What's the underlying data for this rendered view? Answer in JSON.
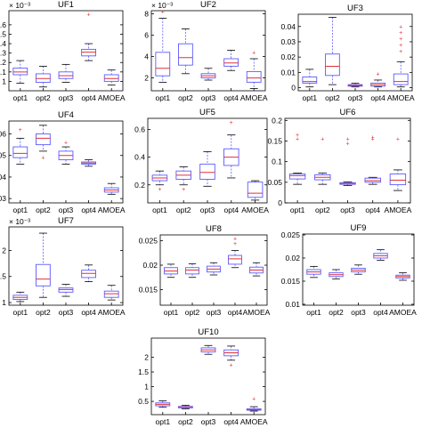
{
  "figure": {
    "colors": {
      "box": "#5b5bff",
      "median": "#e0303a",
      "whisker": "#5b5bff",
      "outlier": "#e0303a"
    }
  },
  "chart_data": [
    {
      "type": "boxplot",
      "title": "UF1",
      "exponent": "× 10⁻³",
      "categories": [
        "opt1",
        "opt2",
        "opt3",
        "opt4",
        "AMOEA"
      ],
      "ylim": [
        0.9,
        1.75
      ],
      "yticks": [
        "1",
        "1.1",
        "1.2",
        "1.3",
        "1.4",
        "1.5",
        "1.6"
      ],
      "ytick_values": [
        1.0,
        1.1,
        1.2,
        1.3,
        1.4,
        1.5,
        1.6
      ],
      "boxes": [
        {
          "min": 0.98,
          "q1": 1.07,
          "median": 1.1,
          "q3": 1.14,
          "max": 1.22,
          "outliers": []
        },
        {
          "min": 0.94,
          "q1": 0.99,
          "median": 1.03,
          "q3": 1.08,
          "max": 1.16,
          "outliers": []
        },
        {
          "min": 0.99,
          "q1": 1.03,
          "median": 1.06,
          "q3": 1.1,
          "max": 1.18,
          "outliers": []
        },
        {
          "min": 1.22,
          "q1": 1.27,
          "median": 1.31,
          "q3": 1.34,
          "max": 1.4,
          "outliers": [
            1.71
          ]
        },
        {
          "min": 0.96,
          "q1": 1.0,
          "median": 1.03,
          "q3": 1.07,
          "max": 1.12,
          "outliers": []
        }
      ]
    },
    {
      "type": "boxplot",
      "title": "UF2",
      "exponent": "× 10⁻³",
      "categories": [
        "opt1",
        "opt2",
        "opt3",
        "opt4",
        "AMOEA"
      ],
      "ylim": [
        0.8,
        8.3
      ],
      "yticks": [
        "2",
        "4",
        "6",
        "8"
      ],
      "ytick_values": [
        2,
        4,
        6,
        8
      ],
      "boxes": [
        {
          "min": 1.6,
          "q1": 2.2,
          "median": 2.9,
          "q3": 4.4,
          "max": 7.6,
          "outliers": [
            8.2
          ]
        },
        {
          "min": 2.4,
          "q1": 3.2,
          "median": 3.9,
          "q3": 5.2,
          "max": 6.6,
          "outliers": []
        },
        {
          "min": 1.8,
          "q1": 2.0,
          "median": 2.2,
          "q3": 2.4,
          "max": 2.9,
          "outliers": []
        },
        {
          "min": 2.7,
          "q1": 3.1,
          "median": 3.4,
          "q3": 3.8,
          "max": 4.6,
          "outliers": []
        },
        {
          "min": 1.0,
          "q1": 1.6,
          "median": 2.0,
          "q3": 2.6,
          "max": 3.8,
          "outliers": [
            4.4
          ]
        }
      ]
    },
    {
      "type": "boxplot",
      "title": "UF3",
      "exponent": "",
      "categories": [
        "opt1",
        "opt2",
        "opt3",
        "opt4",
        "AMOEA"
      ],
      "ylim": [
        -0.002,
        0.048
      ],
      "yticks": [
        "0",
        "0.01",
        "0.02",
        "0.03",
        "0.04"
      ],
      "ytick_values": [
        0,
        0.01,
        0.02,
        0.03,
        0.04
      ],
      "boxes": [
        {
          "min": 0.0005,
          "q1": 0.003,
          "median": 0.004,
          "q3": 0.007,
          "max": 0.012,
          "outliers": []
        },
        {
          "min": 0.002,
          "q1": 0.008,
          "median": 0.014,
          "q3": 0.022,
          "max": 0.046,
          "outliers": []
        },
        {
          "min": 0.0005,
          "q1": 0.001,
          "median": 0.0015,
          "q3": 0.002,
          "max": 0.003,
          "outliers": []
        },
        {
          "min": 0.0005,
          "q1": 0.001,
          "median": 0.002,
          "q3": 0.003,
          "max": 0.005,
          "outliers": [
            0.009
          ]
        },
        {
          "min": 0.0005,
          "q1": 0.002,
          "median": 0.004,
          "q3": 0.009,
          "max": 0.017,
          "outliers": [
            0.024,
            0.028,
            0.032,
            0.036,
            0.04
          ]
        }
      ]
    },
    {
      "type": "boxplot",
      "title": "UF4",
      "exponent": "",
      "categories": [
        "opt1",
        "opt2",
        "opt3",
        "opt4",
        "AMOEA"
      ],
      "ylim": [
        0.028,
        0.066
      ],
      "yticks": [
        "0.03",
        "0.04",
        "0.05",
        "0.06"
      ],
      "ytick_values": [
        0.03,
        0.04,
        0.05,
        0.06
      ],
      "boxes": [
        {
          "min": 0.046,
          "q1": 0.049,
          "median": 0.051,
          "q3": 0.054,
          "max": 0.058,
          "outliers": [
            0.062
          ]
        },
        {
          "min": 0.052,
          "q1": 0.055,
          "median": 0.058,
          "q3": 0.06,
          "max": 0.064,
          "outliers": [
            0.049
          ]
        },
        {
          "min": 0.046,
          "q1": 0.048,
          "median": 0.05,
          "q3": 0.052,
          "max": 0.054,
          "outliers": [
            0.056
          ]
        },
        {
          "min": 0.045,
          "q1": 0.046,
          "median": 0.0465,
          "q3": 0.047,
          "max": 0.048,
          "outliers": []
        },
        {
          "min": 0.032,
          "q1": 0.033,
          "median": 0.034,
          "q3": 0.035,
          "max": 0.037,
          "outliers": []
        }
      ]
    },
    {
      "type": "boxplot",
      "title": "UF5",
      "exponent": "",
      "categories": [
        "opt1",
        "opt2",
        "opt3",
        "opt4",
        "AMOEA"
      ],
      "ylim": [
        0.07,
        0.68
      ],
      "yticks": [
        "0.2",
        "0.4",
        "0.6"
      ],
      "ytick_values": [
        0.2,
        0.4,
        0.6
      ],
      "boxes": [
        {
          "min": 0.2,
          "q1": 0.23,
          "median": 0.25,
          "q3": 0.27,
          "max": 0.3,
          "outliers": [
            0.17
          ]
        },
        {
          "min": 0.2,
          "q1": 0.24,
          "median": 0.27,
          "q3": 0.3,
          "max": 0.33,
          "outliers": [
            0.17
          ]
        },
        {
          "min": 0.19,
          "q1": 0.24,
          "median": 0.29,
          "q3": 0.35,
          "max": 0.44,
          "outliers": []
        },
        {
          "min": 0.25,
          "q1": 0.34,
          "median": 0.4,
          "q3": 0.46,
          "max": 0.56,
          "outliers": [
            0.65
          ]
        },
        {
          "min": 0.09,
          "q1": 0.11,
          "median": 0.14,
          "q3": 0.22,
          "max": 0.23,
          "outliers": []
        }
      ]
    },
    {
      "type": "boxplot",
      "title": "UF6",
      "exponent": "",
      "categories": [
        "opt1",
        "opt2",
        "opt3",
        "opt4",
        "AMOEA"
      ],
      "ylim": [
        0.0,
        0.205
      ],
      "yticks": [
        "0",
        "0.05",
        "0.1",
        "0.15",
        "0.2"
      ],
      "ytick_values": [
        0,
        0.05,
        0.1,
        0.15,
        0.2
      ],
      "boxes": [
        {
          "min": 0.045,
          "q1": 0.058,
          "median": 0.066,
          "q3": 0.07,
          "max": 0.072,
          "outliers": [
            0.155,
            0.165
          ]
        },
        {
          "min": 0.045,
          "q1": 0.056,
          "median": 0.062,
          "q3": 0.068,
          "max": 0.072,
          "outliers": [
            0.155
          ]
        },
        {
          "min": 0.042,
          "q1": 0.045,
          "median": 0.047,
          "q3": 0.049,
          "max": 0.051,
          "outliers": [
            0.145,
            0.155
          ]
        },
        {
          "min": 0.045,
          "q1": 0.05,
          "median": 0.054,
          "q3": 0.06,
          "max": 0.062,
          "outliers": [
            0.155,
            0.16
          ]
        },
        {
          "min": 0.03,
          "q1": 0.044,
          "median": 0.055,
          "q3": 0.07,
          "max": 0.08,
          "outliers": [
            0.155
          ]
        }
      ]
    },
    {
      "type": "boxplot",
      "title": "UF7",
      "exponent": "× 10⁻³",
      "categories": [
        "opt1",
        "opt2",
        "opt3",
        "opt4",
        "AMOEA"
      ],
      "ylim": [
        0.95,
        2.45
      ],
      "yticks": [
        "1",
        "1.5",
        "2"
      ],
      "ytick_values": [
        1.0,
        1.5,
        2.0
      ],
      "boxes": [
        {
          "min": 1.02,
          "q1": 1.06,
          "median": 1.1,
          "q3": 1.14,
          "max": 1.2,
          "outliers": []
        },
        {
          "min": 1.1,
          "q1": 1.32,
          "median": 1.45,
          "q3": 1.73,
          "max": 2.33,
          "outliers": []
        },
        {
          "min": 1.12,
          "q1": 1.2,
          "median": 1.25,
          "q3": 1.28,
          "max": 1.35,
          "outliers": []
        },
        {
          "min": 1.4,
          "q1": 1.48,
          "median": 1.56,
          "q3": 1.62,
          "max": 1.72,
          "outliers": []
        },
        {
          "min": 1.05,
          "q1": 1.1,
          "median": 1.17,
          "q3": 1.22,
          "max": 1.33,
          "outliers": []
        }
      ]
    },
    {
      "type": "boxplot",
      "title": "UF8",
      "exponent": "",
      "categories": [
        "opt1",
        "opt2",
        "opt3",
        "opt4",
        "AMOEA"
      ],
      "ylim": [
        0.0118,
        0.0262
      ],
      "yticks": [
        "0.015",
        "0.02",
        "0.025"
      ],
      "ytick_values": [
        0.015,
        0.02,
        0.025
      ],
      "boxes": [
        {
          "min": 0.0175,
          "q1": 0.0182,
          "median": 0.0188,
          "q3": 0.0195,
          "max": 0.0202,
          "outliers": []
        },
        {
          "min": 0.0175,
          "q1": 0.0182,
          "median": 0.019,
          "q3": 0.0195,
          "max": 0.0203,
          "outliers": []
        },
        {
          "min": 0.018,
          "q1": 0.0186,
          "median": 0.0192,
          "q3": 0.0198,
          "max": 0.0205,
          "outliers": []
        },
        {
          "min": 0.0195,
          "q1": 0.0202,
          "median": 0.0213,
          "q3": 0.022,
          "max": 0.023,
          "outliers": [
            0.0245,
            0.0255
          ]
        },
        {
          "min": 0.0178,
          "q1": 0.0184,
          "median": 0.019,
          "q3": 0.0196,
          "max": 0.0205,
          "outliers": []
        }
      ]
    },
    {
      "type": "boxplot",
      "title": "UF9",
      "exponent": "",
      "categories": [
        "opt1",
        "opt2",
        "opt3",
        "opt4",
        "AMOEA"
      ],
      "ylim": [
        0.0098,
        0.0252
      ],
      "yticks": [
        "0.01",
        "0.015",
        "0.02",
        "0.025"
      ],
      "ytick_values": [
        0.01,
        0.015,
        0.02,
        0.025
      ],
      "boxes": [
        {
          "min": 0.0158,
          "q1": 0.0165,
          "median": 0.017,
          "q3": 0.0175,
          "max": 0.0182,
          "outliers": []
        },
        {
          "min": 0.0155,
          "q1": 0.016,
          "median": 0.0164,
          "q3": 0.0168,
          "max": 0.0175,
          "outliers": []
        },
        {
          "min": 0.0165,
          "q1": 0.017,
          "median": 0.0174,
          "q3": 0.0178,
          "max": 0.0185,
          "outliers": []
        },
        {
          "min": 0.0195,
          "q1": 0.02,
          "median": 0.0205,
          "q3": 0.021,
          "max": 0.0218,
          "outliers": []
        },
        {
          "min": 0.0152,
          "q1": 0.0157,
          "median": 0.016,
          "q3": 0.0163,
          "max": 0.0168,
          "outliers": []
        }
      ]
    },
    {
      "type": "boxplot",
      "title": "UF10",
      "exponent": "",
      "categories": [
        "opt1",
        "opt2",
        "opt3",
        "opt4",
        "AMOEA"
      ],
      "ylim": [
        0.05,
        2.65
      ],
      "yticks": [
        "0.5",
        "1",
        "1.5",
        "2"
      ],
      "ytick_values": [
        0.5,
        1.0,
        1.5,
        2.0
      ],
      "boxes": [
        {
          "min": 0.3,
          "q1": 0.35,
          "median": 0.4,
          "q3": 0.45,
          "max": 0.52,
          "outliers": []
        },
        {
          "min": 0.25,
          "q1": 0.28,
          "median": 0.3,
          "q3": 0.33,
          "max": 0.37,
          "outliers": []
        },
        {
          "min": 2.1,
          "q1": 2.18,
          "median": 2.25,
          "q3": 2.32,
          "max": 2.4,
          "outliers": []
        },
        {
          "min": 1.9,
          "q1": 2.05,
          "median": 2.15,
          "q3": 2.25,
          "max": 2.38,
          "outliers": [
            1.75
          ]
        },
        {
          "min": 0.17,
          "q1": 0.2,
          "median": 0.22,
          "q3": 0.25,
          "max": 0.32,
          "outliers": [
            0.6
          ]
        }
      ]
    }
  ]
}
